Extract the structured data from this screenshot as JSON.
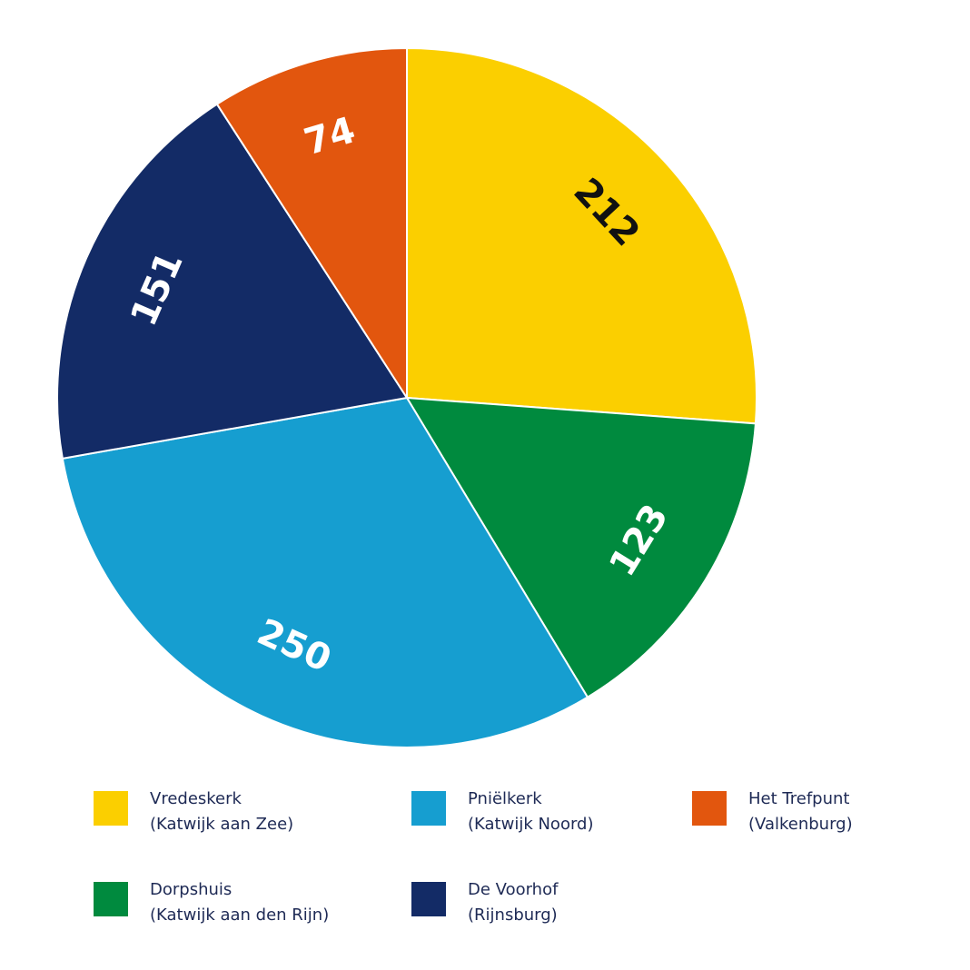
{
  "chart_data": {
    "type": "pie",
    "slices": [
      {
        "label": "Vredeskerk",
        "sublabel": "(Katwijk aan Zee)",
        "value": 212,
        "color": "#fbcf00",
        "label_color": "#111111"
      },
      {
        "label": "Dorpshuis",
        "sublabel": "(Katwijk aan den Rijn)",
        "value": 123,
        "color": "#008a3e",
        "label_color": "#ffffff"
      },
      {
        "label": "Pniëlkerk",
        "sublabel": "(Katwijk Noord)",
        "value": 250,
        "color": "#169ed0",
        "label_color": "#ffffff"
      },
      {
        "label": "De Voorhof",
        "sublabel": "(Rijnsburg)",
        "value": 151,
        "color": "#132b66",
        "label_color": "#ffffff"
      },
      {
        "label": "Het Trefpunt",
        "sublabel": "(Valkenburg)",
        "value": 74,
        "color": "#e2560e",
        "label_color": "#ffffff"
      }
    ],
    "legend": [
      {
        "slice": 0,
        "name": "Vredeskerk",
        "sub": "(Katwijk aan Zee)",
        "color": "#fbcf00"
      },
      {
        "slice": 2,
        "name": "Pniëlkerk",
        "sub": "(Katwijk Noord)",
        "color": "#169ed0"
      },
      {
        "slice": 4,
        "name": "Het Trefpunt",
        "sub": "(Valkenburg)",
        "color": "#e2560e"
      },
      {
        "slice": 1,
        "name": "Dorpshuis",
        "sub": "(Katwijk aan den Rijn)",
        "color": "#008a3e"
      },
      {
        "slice": 3,
        "name": "De Voorhof",
        "sub": "(Rijnsburg)",
        "color": "#132b66"
      }
    ],
    "legend_position": "bottom",
    "start_angle": "top, clockwise"
  }
}
